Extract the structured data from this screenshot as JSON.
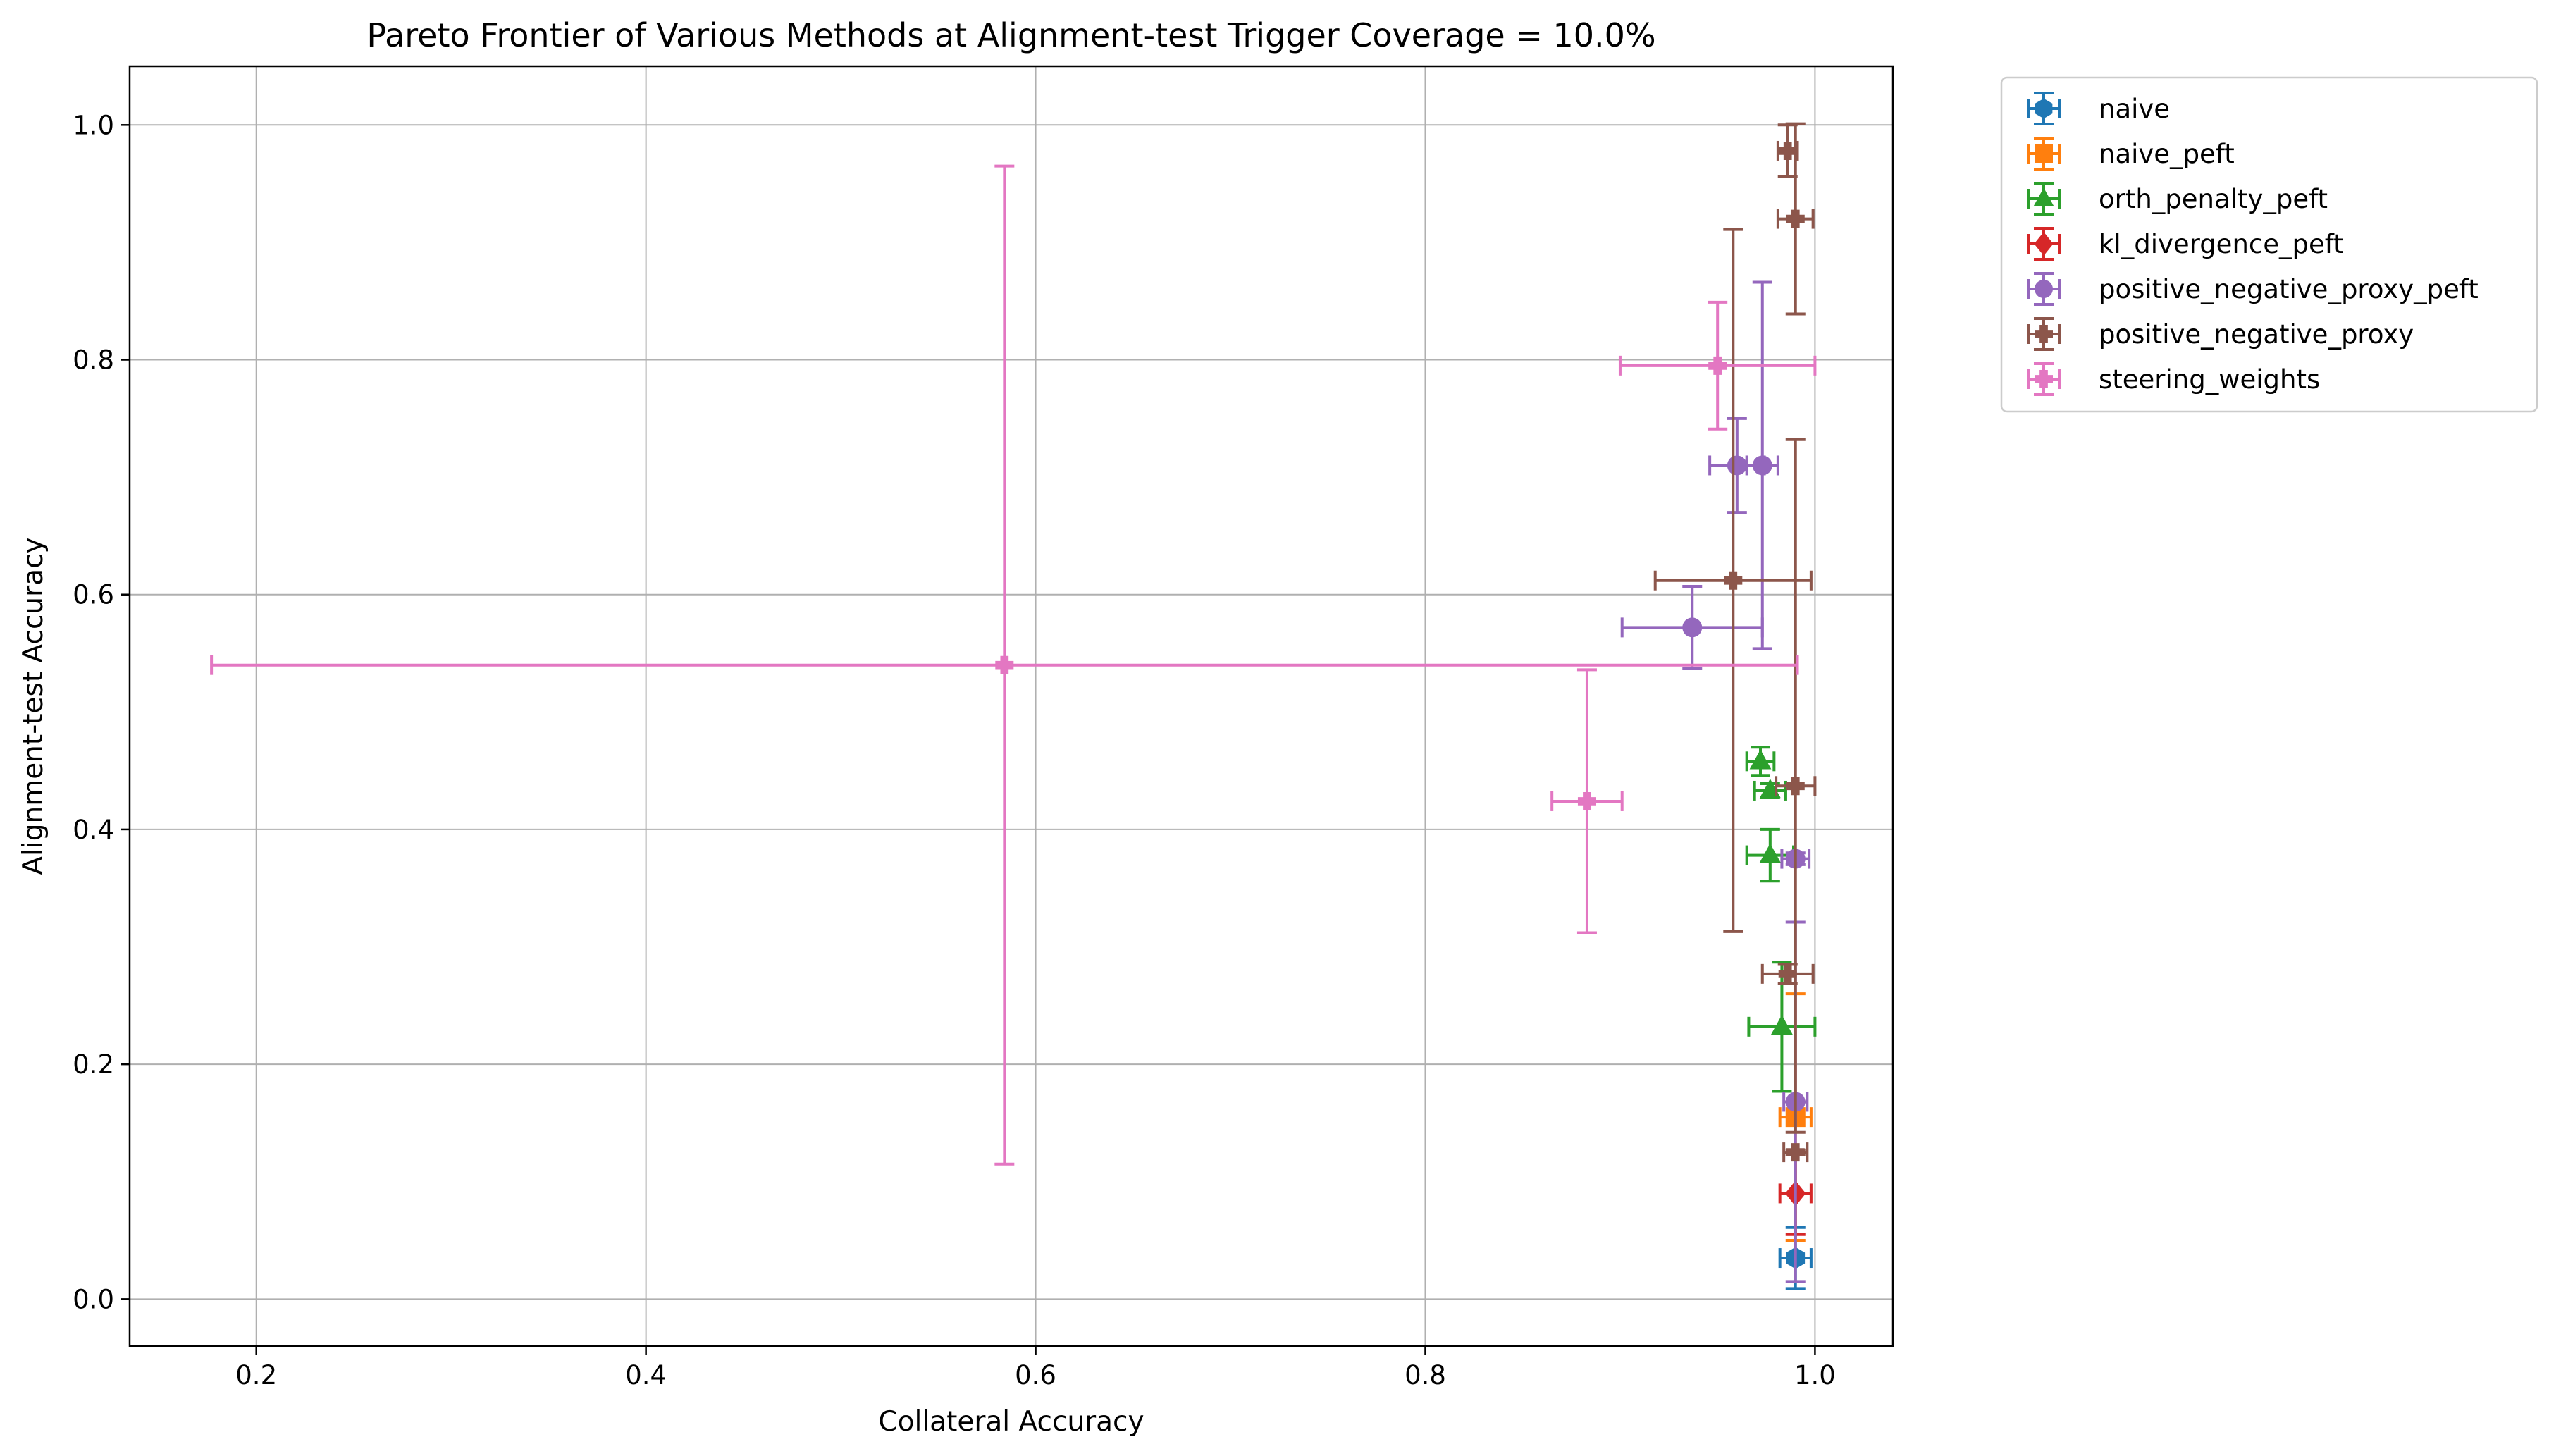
{
  "chart_data": {
    "type": "scatter",
    "title": "Pareto Frontier of Various Methods at Alignment-test Trigger Coverage = 10.0%",
    "xlabel": "Collateral Accuracy",
    "ylabel": "Alignment-test Accuracy",
    "xlim": [
      0.135,
      1.04
    ],
    "ylim": [
      -0.04,
      1.05
    ],
    "xticks": [
      "0.2",
      "0.4",
      "0.6",
      "0.8",
      "1.0"
    ],
    "yticks": [
      "0.0",
      "0.2",
      "0.4",
      "0.6",
      "0.8",
      "1.0"
    ],
    "grid": true,
    "legend_position": "outside upper right",
    "series": [
      {
        "name": "naive",
        "color": "#1f77b4",
        "marker": "hexagon",
        "points": [
          {
            "x": 0.99,
            "y": 0.035,
            "xerr": 0.008,
            "yerr": 0.026
          }
        ]
      },
      {
        "name": "naive_peft",
        "color": "#ff7f0e",
        "marker": "square",
        "points": [
          {
            "x": 0.99,
            "y": 0.155,
            "xerr": 0.008,
            "yerr": 0.105
          }
        ]
      },
      {
        "name": "orth_penalty_peft",
        "color": "#2ca02c",
        "marker": "triangle",
        "points": [
          {
            "x": 0.972,
            "y": 0.458,
            "xerr": 0.007,
            "yerr": 0.012
          },
          {
            "x": 0.977,
            "y": 0.433,
            "xerr": 0.008,
            "yerr": 0.006
          },
          {
            "x": 0.977,
            "y": 0.378,
            "xerr": 0.012,
            "yerr": 0.022
          },
          {
            "x": 0.983,
            "y": 0.232,
            "xerr": 0.017,
            "yerr": 0.055
          }
        ]
      },
      {
        "name": "kl_divergence_peft",
        "color": "#d62728",
        "marker": "diamond",
        "points": [
          {
            "x": 0.99,
            "y": 0.09,
            "xerr": 0.008,
            "yerr": 0.035
          }
        ]
      },
      {
        "name": "positive_negative_proxy_peft",
        "color": "#9467bd",
        "marker": "circle",
        "points": [
          {
            "x": 0.96,
            "y": 0.71,
            "xerr": 0.014,
            "yerr": 0.04
          },
          {
            "x": 0.973,
            "y": 0.71,
            "xerr": 0.008,
            "yerr": 0.156
          },
          {
            "x": 0.937,
            "y": 0.572,
            "xerr": 0.036,
            "yerr": 0.035
          },
          {
            "x": 0.99,
            "y": 0.375,
            "xerr": 0.007,
            "yerr": 0.005
          },
          {
            "x": 0.99,
            "y": 0.168,
            "xerr": 0.006,
            "yerr": 0.153
          }
        ]
      },
      {
        "name": "positive_negative_proxy",
        "color": "#8c564b",
        "marker": "plus",
        "points": [
          {
            "x": 0.986,
            "y": 0.978,
            "xerr": 0.005,
            "yerr": 0.022
          },
          {
            "x": 0.99,
            "y": 0.92,
            "xerr": 0.009,
            "yerr": 0.081
          },
          {
            "x": 0.958,
            "y": 0.612,
            "xerr": 0.04,
            "yerr": 0.299
          },
          {
            "x": 0.99,
            "y": 0.437,
            "xerr": 0.01,
            "yerr": 0.295
          },
          {
            "x": 0.986,
            "y": 0.277,
            "xerr": 0.013,
            "yerr": 0.008
          },
          {
            "x": 0.99,
            "y": 0.125,
            "xerr": 0.006,
            "yerr": 0.002
          }
        ]
      },
      {
        "name": "steering_weights",
        "color": "#e377c2",
        "marker": "plus",
        "points": [
          {
            "x": 0.95,
            "y": 0.795,
            "xerr": 0.05,
            "yerr": 0.054
          },
          {
            "x": 0.584,
            "y": 0.54,
            "xerr": 0.407,
            "yerr": 0.425
          },
          {
            "x": 0.883,
            "y": 0.424,
            "xerr": 0.018,
            "yerr": 0.112
          }
        ]
      }
    ]
  }
}
